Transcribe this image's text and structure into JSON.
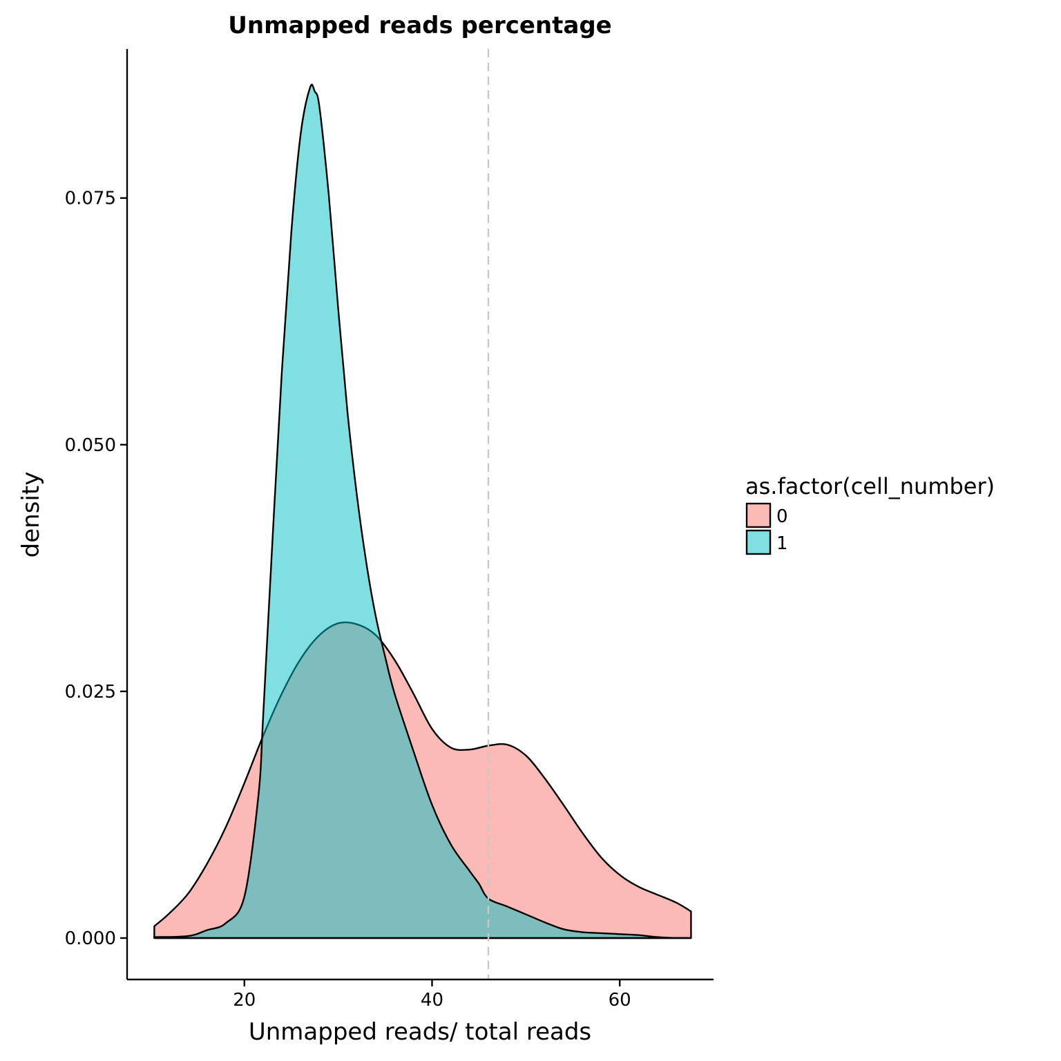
{
  "chart_data": {
    "type": "area",
    "title": "Unmapped reads percentage",
    "xlabel": "Unmapped reads/ total reads",
    "ylabel": "density",
    "xlim": [
      7.5,
      70
    ],
    "ylim": [
      -0.0042,
      0.0901
    ],
    "x_ticks": [
      20,
      40,
      60
    ],
    "x_tick_labels": [
      "20",
      "40",
      "60"
    ],
    "y_ticks": [
      0,
      0.025,
      0.05,
      0.075
    ],
    "y_tick_labels": [
      "0.000",
      "0.025",
      "0.050",
      "0.075"
    ],
    "grid": false,
    "legend": {
      "title": "as.factor(cell_number)",
      "placement": "right"
    },
    "vline": {
      "x": 46.0,
      "style": "dashed",
      "color": "#c8c8c8"
    },
    "series": [
      {
        "name": "0",
        "fill": "#F8766D",
        "x": [
          10.4,
          12,
          14,
          16,
          18,
          20,
          22,
          24,
          26,
          28,
          30,
          32,
          34,
          36,
          38,
          40,
          42,
          44,
          46,
          48,
          50,
          52,
          54,
          56,
          58,
          60,
          62,
          64,
          66,
          67.6
        ],
        "y": [
          0.0012,
          0.0025,
          0.0045,
          0.0075,
          0.0112,
          0.0157,
          0.0205,
          0.0248,
          0.0283,
          0.0307,
          0.0319,
          0.0318,
          0.0307,
          0.0282,
          0.0248,
          0.0212,
          0.0193,
          0.0191,
          0.0195,
          0.0196,
          0.0185,
          0.0162,
          0.0135,
          0.0107,
          0.0082,
          0.0064,
          0.0052,
          0.0044,
          0.0036,
          0.0027
        ]
      },
      {
        "name": "1",
        "fill": "#00BFC4",
        "x": [
          10.4,
          14,
          16,
          18,
          20,
          21.5,
          22,
          23,
          24,
          25,
          26,
          27,
          27.5,
          28,
          29,
          30,
          31,
          32,
          33,
          34,
          35,
          36,
          38,
          40,
          42,
          44,
          45,
          46,
          48,
          50,
          52,
          54,
          56,
          58,
          60,
          62,
          64,
          66,
          67.6
        ],
        "y": [
          0.0001,
          0.0002,
          0.0008,
          0.0015,
          0.0042,
          0.0145,
          0.0225,
          0.0405,
          0.0575,
          0.0715,
          0.0815,
          0.0862,
          0.0858,
          0.0842,
          0.0752,
          0.0638,
          0.0532,
          0.0448,
          0.038,
          0.0326,
          0.0285,
          0.0248,
          0.019,
          0.0135,
          0.0095,
          0.0068,
          0.0055,
          0.004,
          0.0032,
          0.0024,
          0.0016,
          0.0009,
          0.0006,
          0.0005,
          0.0004,
          0.0003,
          0.0001,
          0.0,
          0.0
        ]
      }
    ]
  }
}
